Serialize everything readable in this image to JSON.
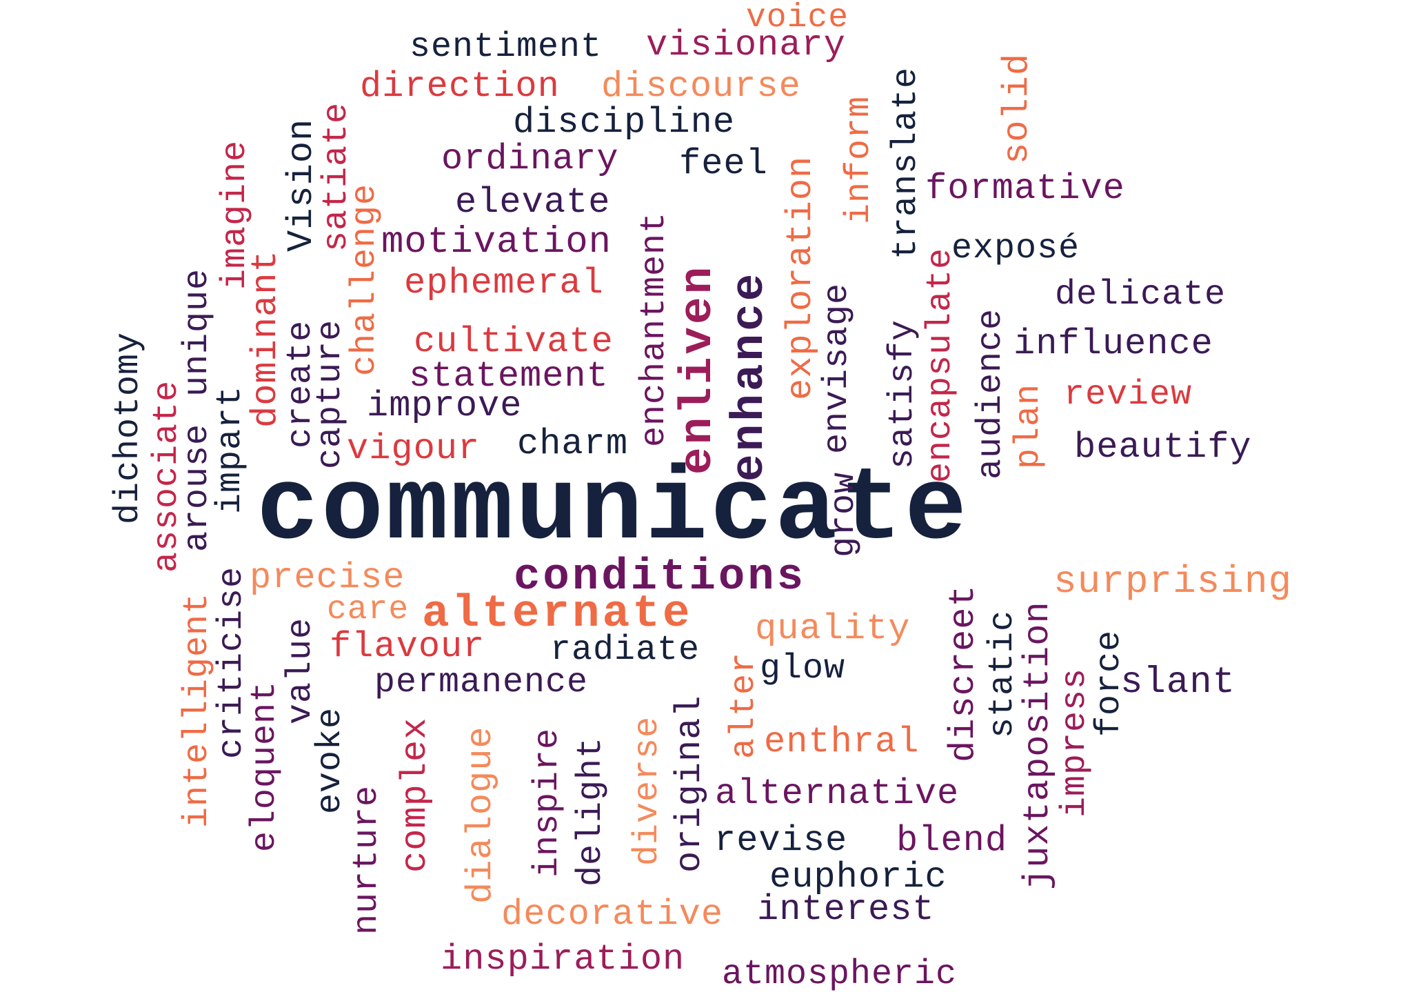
{
  "colors": {
    "navy": "#16213d",
    "dark_purple": "#3b1a55",
    "purple": "#6b1560",
    "magenta": "#9c1d5a",
    "crimson": "#c4264a",
    "red": "#db3a3f",
    "orange": "#ef6b45",
    "light_orange": "#f48a5b"
  },
  "words": {
    "communicate": "communicate",
    "voice": "voice",
    "sentiment": "sentiment",
    "visionary": "visionary",
    "direction": "direction",
    "discourse": "discourse",
    "discipline": "discipline",
    "ordinary": "ordinary",
    "feel": "feel",
    "elevate": "elevate",
    "formative": "formative",
    "motivation": "motivation",
    "expose": "exposé",
    "ephemeral": "ephemeral",
    "delicate": "delicate",
    "influence": "influence",
    "cultivate": "cultivate",
    "statement": "statement",
    "review": "review",
    "improve": "improve",
    "vigour": "vigour",
    "charm": "charm",
    "beautify": "beautify",
    "conditions": "conditions",
    "precise": "precise",
    "surprising": "surprising",
    "care": "care",
    "alternate": "alternate",
    "quality": "quality",
    "flavour": "flavour",
    "radiate": "radiate",
    "glow": "glow",
    "slant": "slant",
    "permanence": "permanence",
    "enthral": "enthral",
    "alternative": "alternative",
    "revise": "revise",
    "blend": "blend",
    "euphoric": "euphoric",
    "decorative": "decorative",
    "interest": "interest",
    "inspiration": "inspiration",
    "atmospheric": "atmospheric",
    "dichotomy": "dichotomy",
    "associate": "associate",
    "arouse": "arouse",
    "unique": "unique",
    "imagine": "imagine",
    "impart": "impart",
    "dominant": "dominant",
    "create": "create",
    "vision": "Vision",
    "capture": "capture",
    "satiate": "satiate",
    "challenge": "challenge",
    "enchantment": "enchantment",
    "enliven": "enliven",
    "enhance": "enhance",
    "exploration": "exploration",
    "envisage": "envisage",
    "inform": "inform",
    "satisfy": "satisfy",
    "translate": "translate",
    "encapsulate": "encapsulate",
    "audience": "audience",
    "plan": "plan",
    "solid": "solid",
    "grow": "grow",
    "intelligent": "intelligent",
    "criticise": "criticise",
    "eloquent": "eloquent",
    "value": "value",
    "evoke": "evoke",
    "nurture": "nurture",
    "complex": "complex",
    "dialogue": "dialogue",
    "inspire": "inspire",
    "delight": "delight",
    "diverse": "diverse",
    "original": "original",
    "alter": "alter",
    "discreet": "discreet",
    "static": "static",
    "juxtaposition": "juxtaposition",
    "impress": "impress",
    "force": "force"
  }
}
